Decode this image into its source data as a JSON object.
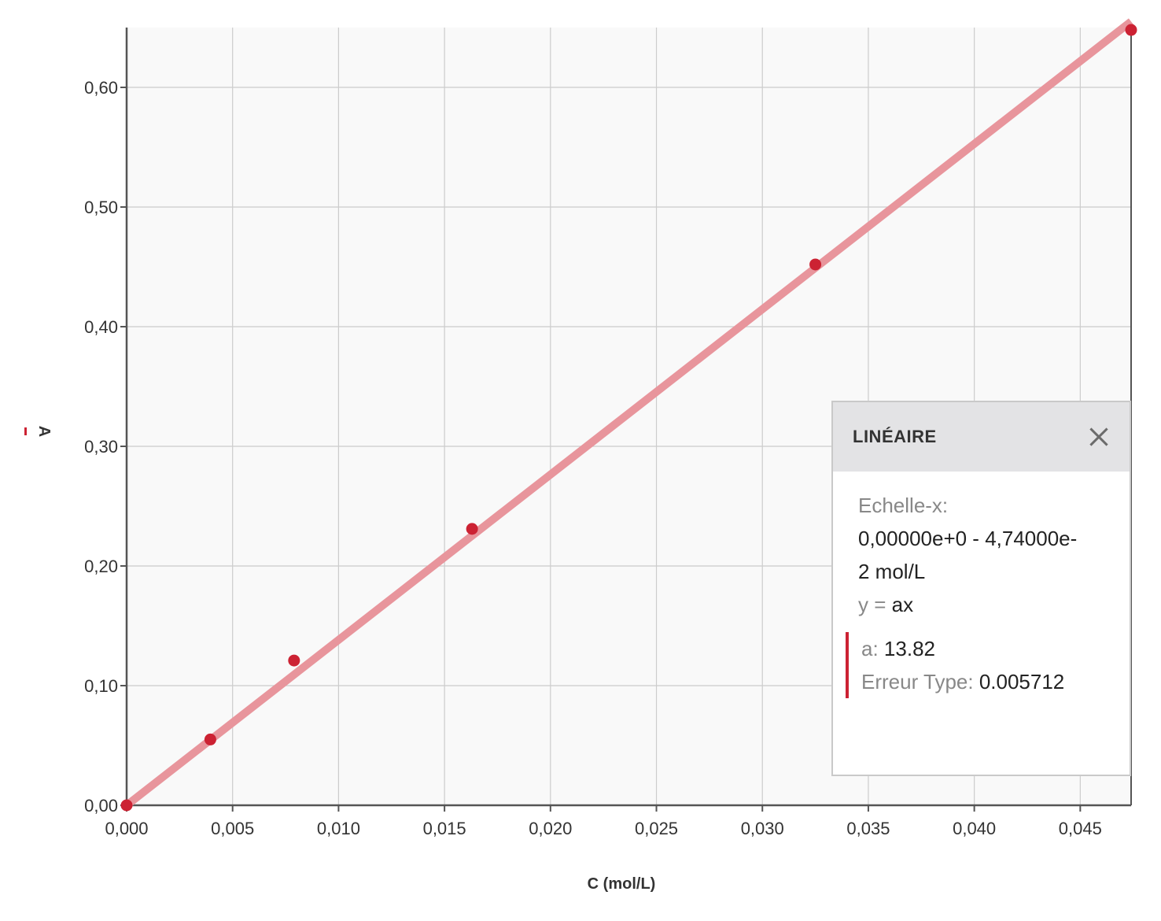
{
  "chart_data": {
    "type": "scatter",
    "title": "",
    "xlabel": "C (mol/L)",
    "ylabel": "A",
    "xlim": [
      0,
      0.0474
    ],
    "ylim": [
      0,
      0.65
    ],
    "x_ticks": [
      "0,000",
      "0,005",
      "0,010",
      "0,015",
      "0,020",
      "0,025",
      "0,030",
      "0,035",
      "0,040",
      "0,045"
    ],
    "y_ticks": [
      "0,00",
      "0,10",
      "0,20",
      "0,30",
      "0,40",
      "0,50",
      "0,60"
    ],
    "grid": true,
    "series": [
      {
        "color": "#cc2233",
        "points": [
          {
            "x": 0.0,
            "y": 0.0
          },
          {
            "x": 0.00395,
            "y": 0.055
          },
          {
            "x": 0.0079,
            "y": 0.121
          },
          {
            "x": 0.0163,
            "y": 0.231
          },
          {
            "x": 0.0325,
            "y": 0.452
          },
          {
            "x": 0.0474,
            "y": 0.648
          }
        ]
      }
    ],
    "fit": {
      "model": "y = ax",
      "a": 13.82,
      "color": "#e8959c"
    }
  },
  "panel": {
    "title": "LINÉAIRE",
    "scale_label": "Echelle-x:",
    "scale_range_line1": "0,00000e+0 - 4,74000e-",
    "scale_range_line2": "2 mol/L",
    "equation_label": "y = ",
    "equation_value": "ax",
    "param_a_label": "a: ",
    "param_a_value": "13.82",
    "std_error_label": "Erreur Type: ",
    "std_error_value": "0.005712"
  }
}
